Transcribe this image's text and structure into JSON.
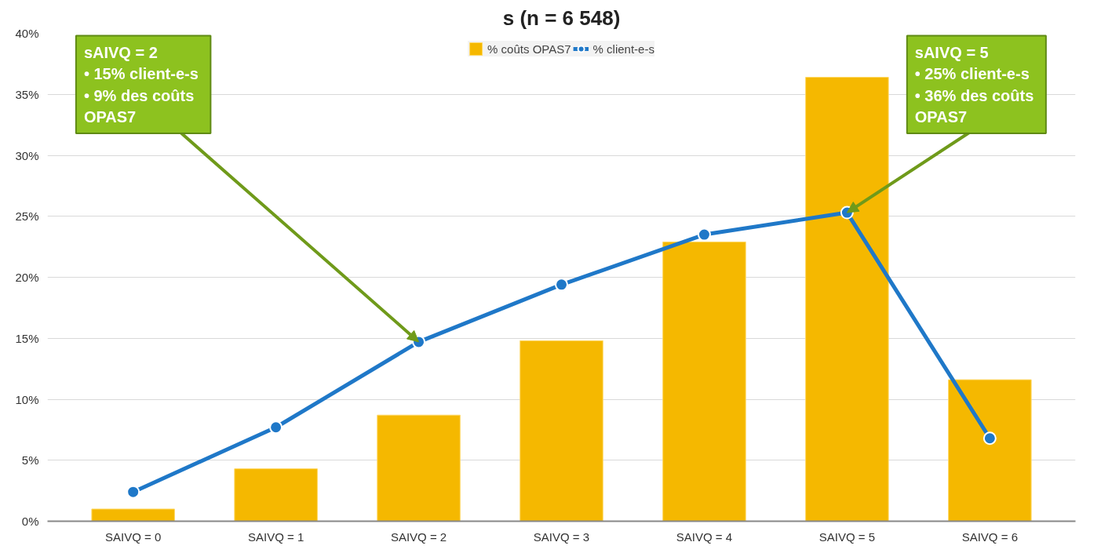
{
  "chart_data": {
    "type": "bar",
    "title": "s (n = 6 548)",
    "categories": [
      "SAIVQ = 0",
      "SAIVQ = 1",
      "SAIVQ = 2",
      "SAIVQ = 3",
      "SAIVQ = 4",
      "SAIVQ = 5",
      "SAIVQ = 6"
    ],
    "series": [
      {
        "name": "% coûts OPAS7",
        "color": "#f5b800",
        "values": [
          1.0,
          4.3,
          8.7,
          14.8,
          22.9,
          36.4,
          11.6
        ]
      },
      {
        "name": "% client-e-s",
        "type": "line",
        "color": "#1f78c8",
        "marker": "circle",
        "values": [
          2.4,
          7.7,
          14.7,
          19.4,
          23.5,
          25.3,
          6.8
        ]
      }
    ],
    "ylim": [
      0,
      40
    ],
    "yticks": [
      {
        "value": 0,
        "label": "0%"
      },
      {
        "value": 5,
        "label": "5%"
      },
      {
        "value": 10,
        "label": "10%"
      },
      {
        "value": 15,
        "label": "15%"
      },
      {
        "value": 20,
        "label": "20%"
      },
      {
        "value": 25,
        "label": "25%"
      },
      {
        "value": 30,
        "label": "30%"
      },
      {
        "value": 35,
        "label": "35%"
      },
      {
        "value": 40,
        "label": "40%"
      }
    ],
    "grid": "y",
    "legend": "top",
    "annotations": [
      {
        "text": "sAIVQ = 2\n•  15% client-e-s\n•  9% des coûts\n    OPAS7",
        "x": "SAIVQ = 2",
        "y": 14.7
      },
      {
        "text": "sAIVQ = 5\n•  25% client-e-s\n•  36% des coûts\n    OPAS7",
        "x": "SAIVQ = 5",
        "y": 25.3
      }
    ]
  }
}
